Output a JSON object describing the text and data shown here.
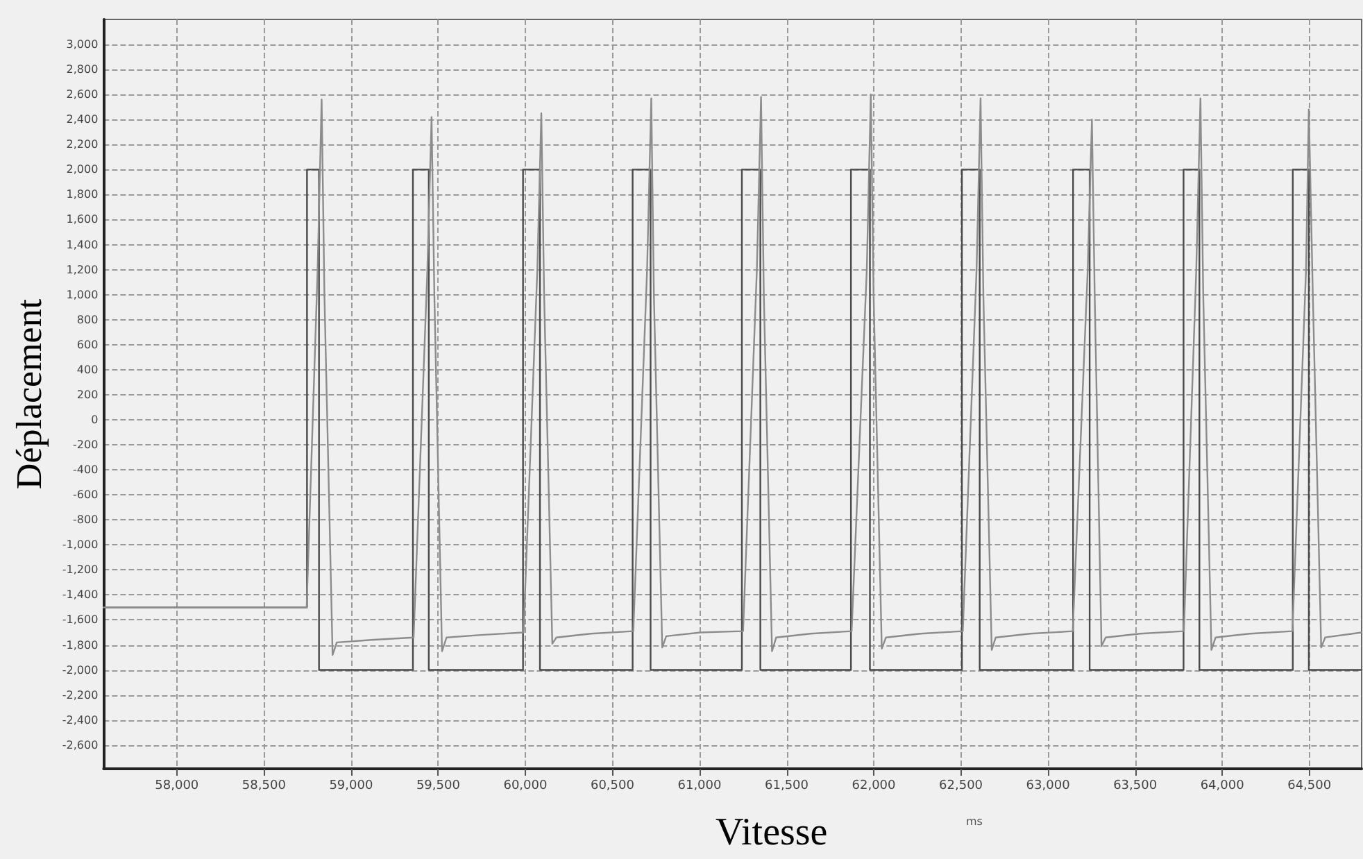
{
  "chart_data": {
    "type": "line",
    "xlabel": "Vitesse",
    "ylabel": "Déplacement",
    "annotations": [
      "ms"
    ],
    "xlim": [
      57580,
      64800
    ],
    "ylim": [
      -2790,
      3200
    ],
    "xticks": [
      {
        "value": 58000,
        "label": "58,000"
      },
      {
        "value": 58500,
        "label": "58,500"
      },
      {
        "value": 59000,
        "label": "59,000"
      },
      {
        "value": 59500,
        "label": "59,500"
      },
      {
        "value": 60000,
        "label": "60,000"
      },
      {
        "value": 60500,
        "label": "60,500"
      },
      {
        "value": 61000,
        "label": "61,000"
      },
      {
        "value": 61500,
        "label": "61,500"
      },
      {
        "value": 62000,
        "label": "62,000"
      },
      {
        "value": 62500,
        "label": "62,500"
      },
      {
        "value": 63000,
        "label": "63,000"
      },
      {
        "value": 63500,
        "label": "63,500"
      },
      {
        "value": 64000,
        "label": "64,000"
      },
      {
        "value": 64500,
        "label": "64,500"
      }
    ],
    "yticks": [
      {
        "value": -2600,
        "label": "-2,600"
      },
      {
        "value": -2400,
        "label": "-2,400"
      },
      {
        "value": -2200,
        "label": "-2,200"
      },
      {
        "value": -2000,
        "label": "-2,000"
      },
      {
        "value": -1800,
        "label": "-1,800"
      },
      {
        "value": -1600,
        "label": "-1,600"
      },
      {
        "value": -1400,
        "label": "-1,400"
      },
      {
        "value": -1200,
        "label": "-1,200"
      },
      {
        "value": -1000,
        "label": "-1,000"
      },
      -800,
      -600,
      -400,
      -200,
      0,
      200,
      400,
      600,
      800,
      {
        "value": 1000,
        "label": "1,000"
      },
      {
        "value": 1200,
        "label": "1,200"
      },
      {
        "value": 1400,
        "label": "1,400"
      },
      {
        "value": 1600,
        "label": "1,600"
      },
      {
        "value": 1800,
        "label": "1,800"
      },
      {
        "value": 2000,
        "label": "2,000"
      },
      {
        "value": 2200,
        "label": "2,200"
      },
      {
        "value": 2400,
        "label": "2,400"
      },
      {
        "value": 2600,
        "label": "2,600"
      },
      {
        "value": 2800,
        "label": "2,800"
      },
      {
        "value": 3000,
        "label": "3,000"
      }
    ],
    "grid": true,
    "marker": "none",
    "line_style": "solid",
    "series": [
      {
        "color": "#4a4a4a",
        "x": [
          57580,
          58747,
          58747,
          58816,
          58816,
          59355,
          59355,
          59446,
          59446,
          59987,
          59987,
          60084,
          60084,
          60616,
          60616,
          60719,
          60719,
          61243,
          61243,
          61349,
          61349,
          61869,
          61869,
          61978,
          61978,
          62506,
          62506,
          62608,
          62608,
          63144,
          63144,
          63239,
          63239,
          63778,
          63778,
          63869,
          63869,
          64405,
          64405,
          64497,
          64497,
          64800
        ],
        "values": [
          -1500,
          -1500,
          2000,
          2000,
          -2000,
          -2000,
          2000,
          2000,
          -2000,
          -2000,
          2000,
          2000,
          -2000,
          -2000,
          2000,
          2000,
          -2000,
          -2000,
          2000,
          2000,
          -2000,
          -2000,
          2000,
          2000,
          -2000,
          -2000,
          2000,
          2000,
          -2000,
          -2000,
          2000,
          2000,
          -2000,
          -2000,
          2000,
          2000,
          -2000,
          -2000,
          2000,
          2000,
          -2000,
          -2000
        ]
      },
      {
        "color": "#8c8c8c",
        "x": [
          57580,
          58745,
          58808,
          58831,
          58847,
          58894,
          58918,
          59115,
          59359,
          59438,
          59462,
          59478,
          59522,
          59548,
          59745,
          59990,
          60069,
          60092,
          60108,
          60155,
          60179,
          60376,
          60620,
          60699,
          60723,
          60738,
          60786,
          60809,
          61006,
          61250,
          61329,
          61353,
          61369,
          61416,
          61440,
          61637,
          61873,
          61960,
          61983,
          61999,
          62046,
          62070,
          62267,
          62511,
          62590,
          62613,
          62629,
          62677,
          62700,
          62897,
          63142,
          63228,
          63252,
          63268,
          63307,
          63331,
          63528,
          63780,
          63851,
          63875,
          63891,
          63938,
          63962,
          64159,
          64403,
          64481,
          64497,
          64520,
          64568,
          64591,
          64800
        ],
        "values": [
          -1500,
          -1500,
          1200,
          2560,
          1000,
          -1880,
          -1780,
          -1760,
          -1740,
          1200,
          2420,
          1000,
          -1850,
          -1740,
          -1720,
          -1700,
          1200,
          2450,
          1000,
          -1790,
          -1740,
          -1710,
          -1690,
          1200,
          2570,
          1000,
          -1820,
          -1730,
          -1700,
          -1690,
          1200,
          2580,
          1000,
          -1850,
          -1740,
          -1710,
          -1690,
          1200,
          2600,
          1000,
          -1830,
          -1740,
          -1710,
          -1690,
          1200,
          2570,
          1000,
          -1840,
          -1740,
          -1710,
          -1690,
          1200,
          2400,
          1000,
          -1810,
          -1740,
          -1710,
          -1690,
          1200,
          2570,
          1000,
          -1840,
          -1740,
          -1710,
          -1690,
          1200,
          2480,
          1000,
          -1820,
          -1740,
          -1700
        ]
      }
    ]
  }
}
